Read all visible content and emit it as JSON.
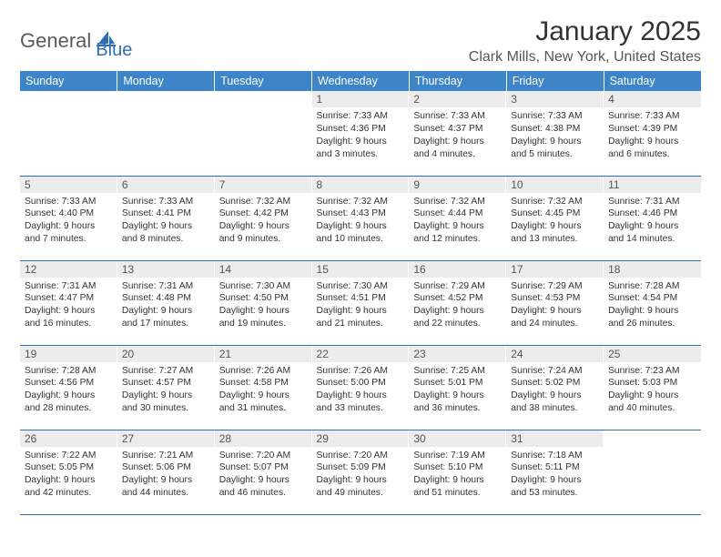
{
  "logo": {
    "text1": "General",
    "text2": "Blue"
  },
  "title": "January 2025",
  "location": "Clark Mills, New York, United States",
  "colors": {
    "header_bg": "#3d85c6",
    "header_text": "#ffffff",
    "daynum_bg": "#ececec",
    "row_border": "#2d6fb6",
    "logo_gray": "#5a5a5a",
    "logo_blue": "#2d6fb6"
  },
  "weekdays": [
    "Sunday",
    "Monday",
    "Tuesday",
    "Wednesday",
    "Thursday",
    "Friday",
    "Saturday"
  ],
  "weeks": [
    [
      {
        "n": "",
        "sr": "",
        "ss": "",
        "dl": ""
      },
      {
        "n": "",
        "sr": "",
        "ss": "",
        "dl": ""
      },
      {
        "n": "",
        "sr": "",
        "ss": "",
        "dl": ""
      },
      {
        "n": "1",
        "sr": "Sunrise: 7:33 AM",
        "ss": "Sunset: 4:36 PM",
        "dl": "Daylight: 9 hours and 3 minutes."
      },
      {
        "n": "2",
        "sr": "Sunrise: 7:33 AM",
        "ss": "Sunset: 4:37 PM",
        "dl": "Daylight: 9 hours and 4 minutes."
      },
      {
        "n": "3",
        "sr": "Sunrise: 7:33 AM",
        "ss": "Sunset: 4:38 PM",
        "dl": "Daylight: 9 hours and 5 minutes."
      },
      {
        "n": "4",
        "sr": "Sunrise: 7:33 AM",
        "ss": "Sunset: 4:39 PM",
        "dl": "Daylight: 9 hours and 6 minutes."
      }
    ],
    [
      {
        "n": "5",
        "sr": "Sunrise: 7:33 AM",
        "ss": "Sunset: 4:40 PM",
        "dl": "Daylight: 9 hours and 7 minutes."
      },
      {
        "n": "6",
        "sr": "Sunrise: 7:33 AM",
        "ss": "Sunset: 4:41 PM",
        "dl": "Daylight: 9 hours and 8 minutes."
      },
      {
        "n": "7",
        "sr": "Sunrise: 7:32 AM",
        "ss": "Sunset: 4:42 PM",
        "dl": "Daylight: 9 hours and 9 minutes."
      },
      {
        "n": "8",
        "sr": "Sunrise: 7:32 AM",
        "ss": "Sunset: 4:43 PM",
        "dl": "Daylight: 9 hours and 10 minutes."
      },
      {
        "n": "9",
        "sr": "Sunrise: 7:32 AM",
        "ss": "Sunset: 4:44 PM",
        "dl": "Daylight: 9 hours and 12 minutes."
      },
      {
        "n": "10",
        "sr": "Sunrise: 7:32 AM",
        "ss": "Sunset: 4:45 PM",
        "dl": "Daylight: 9 hours and 13 minutes."
      },
      {
        "n": "11",
        "sr": "Sunrise: 7:31 AM",
        "ss": "Sunset: 4:46 PM",
        "dl": "Daylight: 9 hours and 14 minutes."
      }
    ],
    [
      {
        "n": "12",
        "sr": "Sunrise: 7:31 AM",
        "ss": "Sunset: 4:47 PM",
        "dl": "Daylight: 9 hours and 16 minutes."
      },
      {
        "n": "13",
        "sr": "Sunrise: 7:31 AM",
        "ss": "Sunset: 4:48 PM",
        "dl": "Daylight: 9 hours and 17 minutes."
      },
      {
        "n": "14",
        "sr": "Sunrise: 7:30 AM",
        "ss": "Sunset: 4:50 PM",
        "dl": "Daylight: 9 hours and 19 minutes."
      },
      {
        "n": "15",
        "sr": "Sunrise: 7:30 AM",
        "ss": "Sunset: 4:51 PM",
        "dl": "Daylight: 9 hours and 21 minutes."
      },
      {
        "n": "16",
        "sr": "Sunrise: 7:29 AM",
        "ss": "Sunset: 4:52 PM",
        "dl": "Daylight: 9 hours and 22 minutes."
      },
      {
        "n": "17",
        "sr": "Sunrise: 7:29 AM",
        "ss": "Sunset: 4:53 PM",
        "dl": "Daylight: 9 hours and 24 minutes."
      },
      {
        "n": "18",
        "sr": "Sunrise: 7:28 AM",
        "ss": "Sunset: 4:54 PM",
        "dl": "Daylight: 9 hours and 26 minutes."
      }
    ],
    [
      {
        "n": "19",
        "sr": "Sunrise: 7:28 AM",
        "ss": "Sunset: 4:56 PM",
        "dl": "Daylight: 9 hours and 28 minutes."
      },
      {
        "n": "20",
        "sr": "Sunrise: 7:27 AM",
        "ss": "Sunset: 4:57 PM",
        "dl": "Daylight: 9 hours and 30 minutes."
      },
      {
        "n": "21",
        "sr": "Sunrise: 7:26 AM",
        "ss": "Sunset: 4:58 PM",
        "dl": "Daylight: 9 hours and 31 minutes."
      },
      {
        "n": "22",
        "sr": "Sunrise: 7:26 AM",
        "ss": "Sunset: 5:00 PM",
        "dl": "Daylight: 9 hours and 33 minutes."
      },
      {
        "n": "23",
        "sr": "Sunrise: 7:25 AM",
        "ss": "Sunset: 5:01 PM",
        "dl": "Daylight: 9 hours and 36 minutes."
      },
      {
        "n": "24",
        "sr": "Sunrise: 7:24 AM",
        "ss": "Sunset: 5:02 PM",
        "dl": "Daylight: 9 hours and 38 minutes."
      },
      {
        "n": "25",
        "sr": "Sunrise: 7:23 AM",
        "ss": "Sunset: 5:03 PM",
        "dl": "Daylight: 9 hours and 40 minutes."
      }
    ],
    [
      {
        "n": "26",
        "sr": "Sunrise: 7:22 AM",
        "ss": "Sunset: 5:05 PM",
        "dl": "Daylight: 9 hours and 42 minutes."
      },
      {
        "n": "27",
        "sr": "Sunrise: 7:21 AM",
        "ss": "Sunset: 5:06 PM",
        "dl": "Daylight: 9 hours and 44 minutes."
      },
      {
        "n": "28",
        "sr": "Sunrise: 7:20 AM",
        "ss": "Sunset: 5:07 PM",
        "dl": "Daylight: 9 hours and 46 minutes."
      },
      {
        "n": "29",
        "sr": "Sunrise: 7:20 AM",
        "ss": "Sunset: 5:09 PM",
        "dl": "Daylight: 9 hours and 49 minutes."
      },
      {
        "n": "30",
        "sr": "Sunrise: 7:19 AM",
        "ss": "Sunset: 5:10 PM",
        "dl": "Daylight: 9 hours and 51 minutes."
      },
      {
        "n": "31",
        "sr": "Sunrise: 7:18 AM",
        "ss": "Sunset: 5:11 PM",
        "dl": "Daylight: 9 hours and 53 minutes."
      },
      {
        "n": "",
        "sr": "",
        "ss": "",
        "dl": ""
      }
    ]
  ]
}
